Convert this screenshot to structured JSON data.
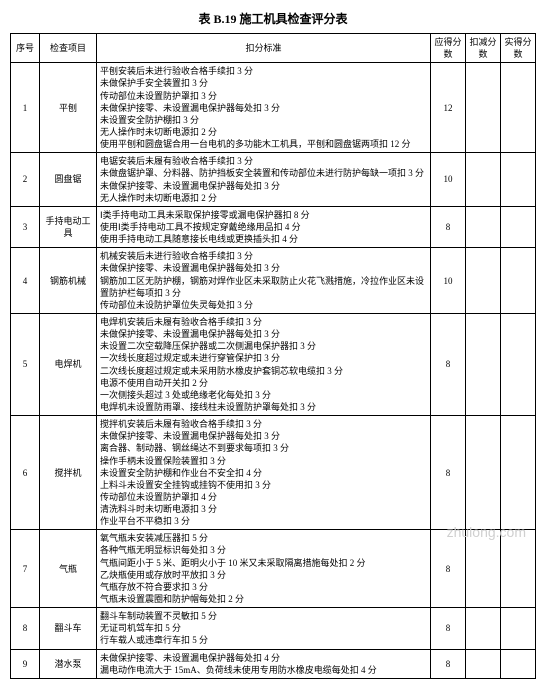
{
  "title": "表 B.19  施工机具检查评分表",
  "headers": {
    "seq": "序号",
    "item": "检查项目",
    "standard": "扣分标准",
    "score_max": "应得分数",
    "score_deduct": "扣减分数",
    "score_actual": "实得分数"
  },
  "rows": [
    {
      "seq": "1",
      "item": "平刨",
      "standard": "平刨安装后未进行验收合格手续扣 3 分\n未做保护手安全装置扣 3 分\n传动部位未设置防护罩扣 3 分\n未做保护接零、未设置漏电保护器每处扣 3 分\n未设置安全防护棚扣 3 分\n无人操作时未切断电源扣 2 分\n使用平刨和圆盘锯合用一台电机的多功能木工机具，平刨和圆盘锯两项扣 12 分",
      "score_max": "12"
    },
    {
      "seq": "2",
      "item": "圆盘锯",
      "standard": "电锯安装后未履有验收合格手续扣 3 分\n未做盘锯护罩、分料器、防护挡板安全装置和传动部位未进行防护每缺一项扣 3 分\n未做保护接零、未设置漏电保护器每处扣 3 分\n无人操作时未切断电源扣 2 分",
      "score_max": "10"
    },
    {
      "seq": "3",
      "item": "手持电动工具",
      "standard": "Ⅰ类手持电动工具未采取保护接零或漏电保护器扣 8 分\n使用Ⅰ类手持电动工具不按规定穿戴绝缘用品扣 4 分\n使用手持电动工具随意接长电线或更换插头扣 4 分",
      "score_max": "8"
    },
    {
      "seq": "4",
      "item": "钢筋机械",
      "standard": "机械安装后未进行验收合格手续扣 3 分\n未做保护接零、未设置漏电保护器每处扣 3 分\n钢筋加工区无防护棚，钢筋对焊作业区未采取防止火花飞溅措施，冷拉作业区未设置防护栏每项扣 3 分\n传动部位未设防护罩位失灵每处扣 3 分",
      "score_max": "10"
    },
    {
      "seq": "5",
      "item": "电焊机",
      "standard": "电焊机安装后未履有验收合格手续扣 3 分\n未做保护接零、未设置漏电保护器每处扣 3 分\n未设置二次空载降压保护器或二次侧漏电保护器扣 3 分\n一次线长度超过规定或未进行穿管保护扣 3 分\n二次线长度超过规定或未采用防水橡皮护套铜芯软电缆扣 3 分\n电源不使用自动开关扣 2 分\n一次侧接头超过 3 处或绝缘老化每处扣 3 分\n电焊机未设置防雨罩、接线柱未设置防护罩每处扣 3 分",
      "score_max": "8"
    },
    {
      "seq": "6",
      "item": "搅拌机",
      "standard": "搅拌机安装后未履有验收合格手续扣 3 分\n未做保护接零、未设置漏电保护器每处扣 3 分\n离合器、制动器、钢丝绳达不到要求每项扣 3 分\n操作手柄未设置保险装置扣 3 分\n未设置安全防护棚和作业台不安全扣 4 分\n上料斗未设置安全挂钩或挂钩不使用扣 3 分\n传动部位未设置防护罩扣 4 分\n清洗料斗时未切断电源扣 3 分\n作业平台不平稳扣 3 分",
      "score_max": "8"
    },
    {
      "seq": "7",
      "item": "气瓶",
      "standard": "氧气瓶未安装减压器扣 5 分\n各种气瓶无明显标识每处扣 3 分\n气瓶间距小于 5 米、距明火小于 10 米又未采取隔离措施每处扣 2 分\n乙炔瓶使用或存放时平放扣 3 分\n气瓶存放不符合要求扣 3 分\n气瓶未设置震圈和防护帽每处扣 2 分",
      "score_max": "8"
    },
    {
      "seq": "8",
      "item": "翻斗车",
      "standard": "翻斗车制动装置不灵敏扣 5 分\n无证司机驾车扣 5 分\n行车载人或违章行车扣 5 分",
      "score_max": "8"
    },
    {
      "seq": "9",
      "item": "潜水泵",
      "standard": "未做保护接零、未设置漏电保护器每处扣 4 分\n漏电动作电流大于 15mA、负荷线未使用专用防水橡皮电缆每处扣 4 分",
      "score_max": "8"
    }
  ],
  "watermark": "zhulong.com"
}
